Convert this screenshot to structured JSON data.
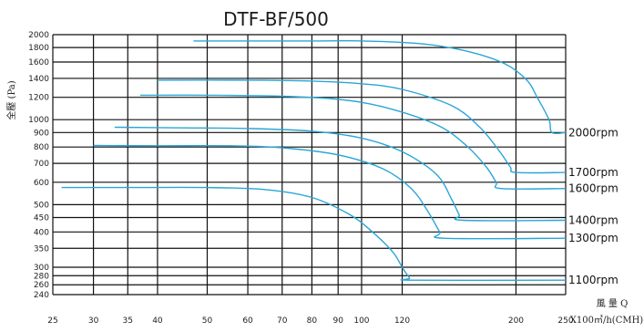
{
  "chart_data": {
    "type": "line",
    "title": "DTF-BF/500",
    "ylabel": "全壓 (Pa)",
    "xlabel_top": "風 量 Q",
    "xlabel_bottom": "X100㎥/h(CMH)",
    "x_scale": "log",
    "y_scale": "log",
    "xlim": [
      25,
      250
    ],
    "ylim": [
      240,
      2000
    ],
    "x_ticks": [
      "25",
      "30",
      "35",
      "40",
      "50",
      "60",
      "70",
      "80",
      "90",
      "100",
      "120",
      "200",
      "250"
    ],
    "y_ticks": [
      "2000",
      "1800",
      "1600",
      "1400",
      "1200",
      "1000",
      "900",
      "800",
      "700",
      "600",
      "500",
      "450",
      "400",
      "350",
      "300",
      "280",
      "260",
      "240"
    ],
    "grid": true,
    "line_color": "#2aa6d6",
    "series": [
      {
        "name": "2000rpm",
        "x": [
          47,
          60,
          80,
          100,
          130,
          160,
          190,
          210,
          220,
          232,
          235,
          250
        ],
        "y": [
          1900,
          1900,
          1900,
          1900,
          1860,
          1750,
          1580,
          1380,
          1200,
          1000,
          900,
          900
        ]
      },
      {
        "name": "1700rpm",
        "x": [
          40,
          60,
          80,
          100,
          120,
          150,
          170,
          185,
          195,
          200,
          250
        ],
        "y": [
          1380,
          1380,
          1370,
          1340,
          1280,
          1120,
          940,
          780,
          680,
          650,
          650
        ]
      },
      {
        "name": "1600rpm",
        "x": [
          37,
          50,
          70,
          90,
          110,
          140,
          160,
          175,
          183,
          187,
          250
        ],
        "y": [
          1220,
          1220,
          1210,
          1180,
          1110,
          960,
          810,
          680,
          600,
          570,
          570
        ]
      },
      {
        "name": "1400rpm",
        "x": [
          33,
          45,
          60,
          80,
          100,
          120,
          140,
          150,
          155,
          158,
          250
        ],
        "y": [
          940,
          935,
          930,
          910,
          860,
          770,
          640,
          520,
          460,
          440,
          440
        ]
      },
      {
        "name": "1300rpm",
        "x": [
          30,
          40,
          55,
          70,
          90,
          110,
          125,
          135,
          142,
          145,
          250
        ],
        "y": [
          810,
          808,
          808,
          795,
          750,
          670,
          570,
          470,
          400,
          380,
          380
        ]
      },
      {
        "name": "1100rpm",
        "x": [
          26,
          35,
          50,
          65,
          80,
          95,
          105,
          115,
          120,
          124,
          126,
          250
        ],
        "y": [
          575,
          575,
          575,
          565,
          530,
          460,
          400,
          340,
          300,
          275,
          270,
          270
        ]
      }
    ]
  }
}
